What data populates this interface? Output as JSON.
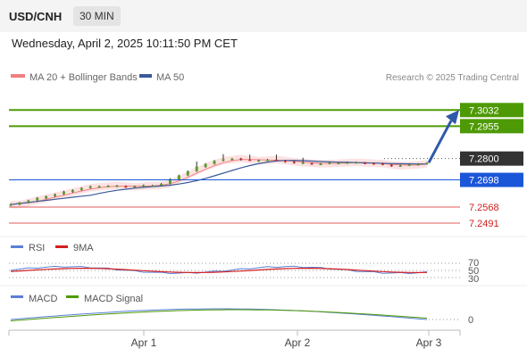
{
  "header": {
    "symbol": "USD/CNH",
    "timeframe": "30 MIN",
    "datetime": "Wednesday, April 2, 2025 10:11:50 PM CET"
  },
  "legend": {
    "ma20_bb": "MA 20 + Bollinger Bands",
    "ma50": "MA 50",
    "credit": "Research © 2025 Trading Central"
  },
  "colors": {
    "resistance": "#4e9a06",
    "support": "#e05858",
    "pivot": "#1a56d8",
    "current": "#333333",
    "bollinger": "#fbd2d2",
    "ma20": "#f08080",
    "ma50": "#3a5a9a",
    "arrow": "#2e5aa8",
    "candle_up": "#5aa02c",
    "candle_down": "#d23030",
    "rsi": "#5b7fd6",
    "rsi_ma": "#d21f1f",
    "macd": "#5b7fd6",
    "macd_signal": "#4e9a06"
  },
  "chart_data": {
    "type": "candlestick",
    "x_ticks": [
      "Apr 1",
      "Apr 2",
      "Apr 3"
    ],
    "price_axis_range": [
      7.244,
      7.314
    ],
    "levels": [
      {
        "value": 7.3032,
        "label": "7.3032",
        "kind": "resistance"
      },
      {
        "value": 7.2955,
        "label": "7.2955",
        "kind": "resistance"
      },
      {
        "value": 7.28,
        "label": "7.2800",
        "kind": "current"
      },
      {
        "value": 7.2698,
        "label": "7.2698",
        "kind": "pivot"
      },
      {
        "value": 7.2568,
        "label": "7.2568",
        "kind": "support"
      },
      {
        "value": 7.2491,
        "label": "7.2491",
        "kind": "support"
      }
    ],
    "closes_approx": [
      7.258,
      7.259,
      7.26,
      7.261,
      7.262,
      7.263,
      7.264,
      7.265,
      7.266,
      7.2665,
      7.2668,
      7.267,
      7.2668,
      7.2665,
      7.2668,
      7.267,
      7.2672,
      7.268,
      7.27,
      7.272,
      7.274,
      7.276,
      7.2775,
      7.279,
      7.2795,
      7.28,
      7.2795,
      7.279,
      7.2792,
      7.2795,
      7.279,
      7.2785,
      7.278,
      7.2778,
      7.2775,
      7.2776,
      7.2778,
      7.278,
      7.2782,
      7.278,
      7.2778,
      7.2776,
      7.277,
      7.2765,
      7.2768,
      7.277,
      7.2775,
      7.278
    ],
    "rsi_panel": {
      "title": "RSI",
      "ma_label": "9MA",
      "levels": [
        "70",
        "50",
        "30"
      ]
    },
    "macd_panel": {
      "title": "MACD",
      "signal_label": "MACD Signal",
      "zero_label": "0"
    }
  }
}
